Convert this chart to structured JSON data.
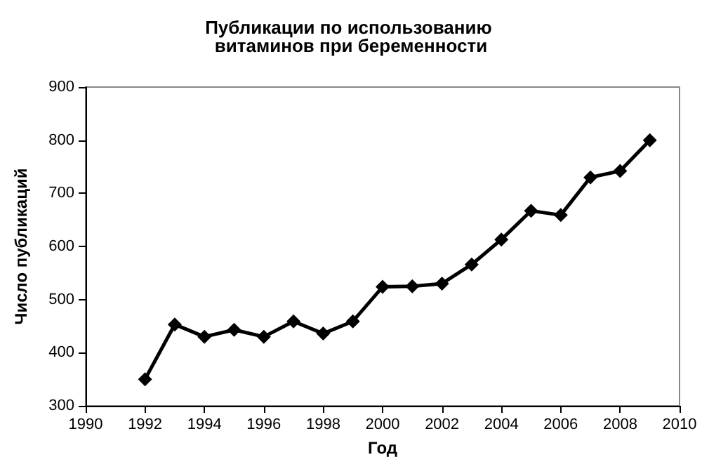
{
  "chart_data": {
    "type": "line",
    "title": "Публикации по использованию витаминов при беременности",
    "xlabel": "Год",
    "ylabel": "Число публикаций",
    "x": [
      1992,
      1993,
      1994,
      1995,
      1996,
      1997,
      1998,
      1999,
      2000,
      2001,
      2002,
      2003,
      2004,
      2005,
      2006,
      2007,
      2008,
      2009
    ],
    "series": [
      {
        "color": "#000000",
        "values": [
          350,
          453,
          430,
          443,
          430,
          459,
          436,
          459,
          524,
          525,
          530,
          566,
          613,
          667,
          659,
          730,
          742,
          800
        ]
      }
    ],
    "xlim": [
      1990,
      2010
    ],
    "xticks": [
      1990,
      1992,
      1994,
      1996,
      1998,
      2000,
      2002,
      2004,
      2006,
      2008,
      2010
    ],
    "ylim": [
      300,
      900
    ],
    "yticks": [
      300,
      400,
      500,
      600,
      700,
      800,
      900
    ],
    "grid": false,
    "marker": "diamond",
    "line_style": "solid"
  }
}
